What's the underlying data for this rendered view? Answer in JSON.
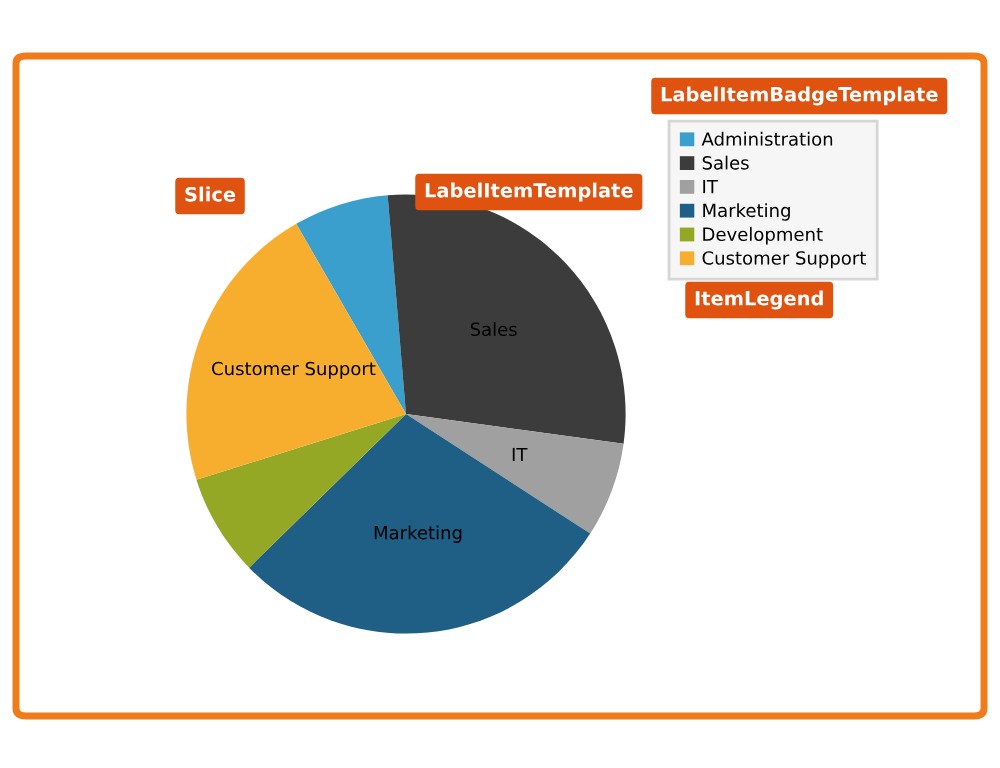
{
  "chart_data": {
    "type": "pie",
    "categories": [
      "Administration",
      "Sales",
      "IT",
      "Marketing",
      "Development",
      "Customer Support"
    ],
    "values": [
      7,
      28.5,
      7,
      28.5,
      7.5,
      21.5
    ],
    "colors": [
      "#3a9fcc",
      "#3c3c3c",
      "#a0a0a0",
      "#1f5f86",
      "#94a825",
      "#f7ae2f"
    ],
    "value_labels": [
      null,
      "Sales",
      "IT",
      "Marketing",
      null,
      "Customer Support"
    ],
    "legend": "top right",
    "annotations": [
      "Slice",
      "LabelItemBadgeTemplate",
      "LabelItemTemplate",
      "ItemLegend"
    ]
  }
}
